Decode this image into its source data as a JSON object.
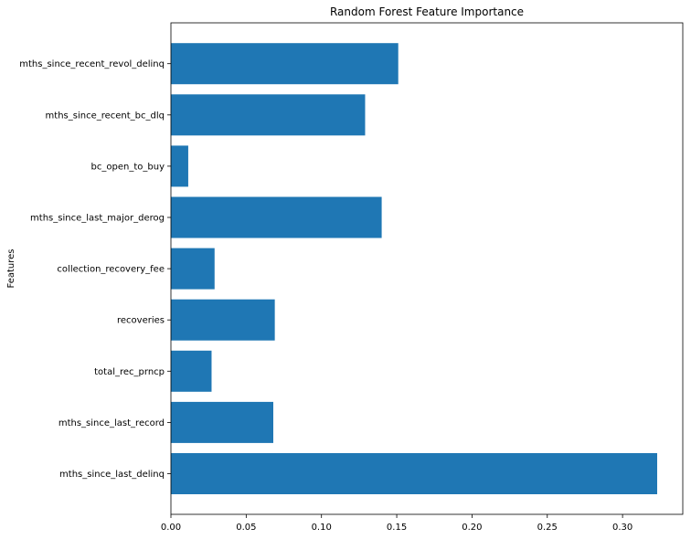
{
  "chart_data": {
    "type": "bar",
    "orientation": "horizontal",
    "title": "Random Forest Feature Importance",
    "xlabel": "",
    "ylabel": "Features",
    "categories": [
      "mths_since_last_delinq",
      "mths_since_last_record",
      "total_rec_prncp",
      "recoveries",
      "collection_recovery_fee",
      "mths_since_last_major_derog",
      "bc_open_to_buy",
      "mths_since_recent_bc_dlq",
      "mths_since_recent_revol_delinq"
    ],
    "values": [
      0.323,
      0.068,
      0.027,
      0.069,
      0.029,
      0.14,
      0.0115,
      0.129,
      0.151
    ],
    "xlim": [
      0,
      0.34
    ],
    "xticks": [
      0.0,
      0.05,
      0.1,
      0.15,
      0.2,
      0.25,
      0.3
    ],
    "xtick_labels": [
      "0.00",
      "0.05",
      "0.10",
      "0.15",
      "0.20",
      "0.25",
      "0.30"
    ],
    "bar_color": "#1f77b4",
    "grid": false,
    "legend": "none"
  }
}
